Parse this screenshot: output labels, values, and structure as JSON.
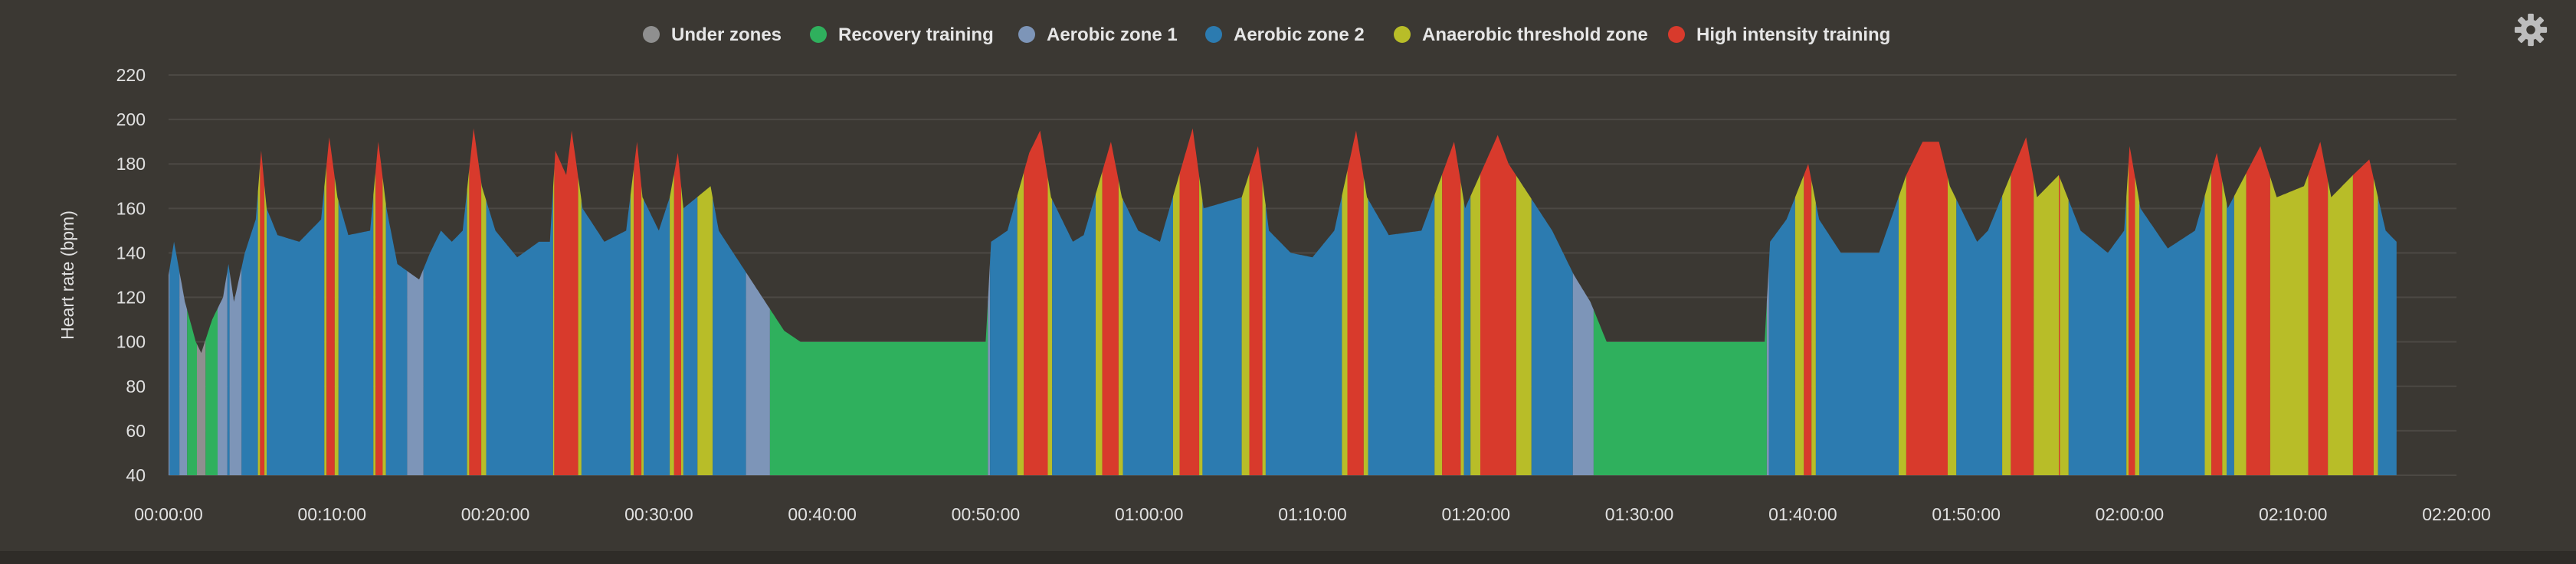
{
  "settings_icon": "gear-icon",
  "chart_data": {
    "type": "area",
    "title": "",
    "xlabel": "",
    "ylabel": "Heart rate (bpm)",
    "ylim": [
      40,
      220
    ],
    "yticks": [
      40,
      60,
      80,
      100,
      120,
      140,
      160,
      180,
      200,
      220
    ],
    "xlim": [
      "00:00:00",
      "02:20:00"
    ],
    "xticks": [
      "00:00:00",
      "00:10:00",
      "00:20:00",
      "00:30:00",
      "00:40:00",
      "00:50:00",
      "01:00:00",
      "01:10:00",
      "01:20:00",
      "01:30:00",
      "01:40:00",
      "01:50:00",
      "02:00:00",
      "02:10:00",
      "02:20:00"
    ],
    "grid": true,
    "legend_position": "top",
    "series": [
      {
        "name": "Under zones",
        "color": "#8f8f8f",
        "zone": [
          0,
          100
        ]
      },
      {
        "name": "Recovery training",
        "color": "#2fb05d",
        "zone": [
          100,
          115
        ]
      },
      {
        "name": "Aerobic zone 1",
        "color": "#7d95b8",
        "zone": [
          115,
          132
        ]
      },
      {
        "name": "Aerobic zone 2",
        "color": "#2c7bb0",
        "zone": [
          132,
          165
        ]
      },
      {
        "name": "Anaerobic threshold zone",
        "color": "#b8bd28",
        "zone": [
          165,
          175
        ]
      },
      {
        "name": "High intensity training",
        "color": "#d83a2c",
        "zone": [
          175,
          240
        ]
      }
    ],
    "points": [
      [
        "00:00:00",
        130
      ],
      [
        "00:00:20",
        145
      ],
      [
        "00:01:00",
        118
      ],
      [
        "00:01:40",
        100
      ],
      [
        "00:02:00",
        95
      ],
      [
        "00:02:40",
        110
      ],
      [
        "00:03:20",
        120
      ],
      [
        "00:03:40",
        135
      ],
      [
        "00:04:00",
        118
      ],
      [
        "00:04:40",
        140
      ],
      [
        "00:05:20",
        155
      ],
      [
        "00:05:40",
        186
      ],
      [
        "00:06:00",
        160
      ],
      [
        "00:06:40",
        148
      ],
      [
        "00:08:00",
        145
      ],
      [
        "00:09:20",
        155
      ],
      [
        "00:09:50",
        192
      ],
      [
        "00:10:20",
        165
      ],
      [
        "00:11:00",
        148
      ],
      [
        "00:12:20",
        150
      ],
      [
        "00:12:50",
        190
      ],
      [
        "00:13:20",
        160
      ],
      [
        "00:14:00",
        135
      ],
      [
        "00:15:20",
        128
      ],
      [
        "00:16:00",
        140
      ],
      [
        "00:16:40",
        150
      ],
      [
        "00:17:20",
        145
      ],
      [
        "00:18:00",
        150
      ],
      [
        "00:18:40",
        196
      ],
      [
        "00:19:10",
        170
      ],
      [
        "00:20:00",
        150
      ],
      [
        "00:21:20",
        138
      ],
      [
        "00:22:40",
        145
      ],
      [
        "00:23:20",
        145
      ],
      [
        "00:23:40",
        186
      ],
      [
        "00:24:20",
        175
      ],
      [
        "00:24:40",
        195
      ],
      [
        "00:25:20",
        160
      ],
      [
        "00:26:40",
        145
      ],
      [
        "00:28:00",
        150
      ],
      [
        "00:28:40",
        190
      ],
      [
        "00:29:00",
        165
      ],
      [
        "00:30:00",
        150
      ],
      [
        "00:30:40",
        165
      ],
      [
        "00:31:10",
        185
      ],
      [
        "00:31:30",
        160
      ],
      [
        "00:33:10",
        170
      ],
      [
        "00:33:40",
        150
      ],
      [
        "00:35:00",
        135
      ],
      [
        "00:36:20",
        120
      ],
      [
        "00:37:40",
        105
      ],
      [
        "00:38:40",
        100
      ],
      [
        "00:50:00",
        100
      ],
      [
        "00:50:20",
        145
      ],
      [
        "00:51:20",
        150
      ],
      [
        "00:52:40",
        185
      ],
      [
        "00:53:20",
        195
      ],
      [
        "00:54:00",
        165
      ],
      [
        "00:55:20",
        145
      ],
      [
        "00:56:00",
        148
      ],
      [
        "00:57:40",
        190
      ],
      [
        "00:58:20",
        165
      ],
      [
        "00:59:20",
        150
      ],
      [
        "01:00:40",
        145
      ],
      [
        "01:02:40",
        196
      ],
      [
        "01:03:20",
        160
      ],
      [
        "01:05:40",
        165
      ],
      [
        "01:06:40",
        188
      ],
      [
        "01:07:20",
        150
      ],
      [
        "01:08:40",
        140
      ],
      [
        "01:10:00",
        138
      ],
      [
        "01:11:20",
        150
      ],
      [
        "01:12:40",
        195
      ],
      [
        "01:13:20",
        165
      ],
      [
        "01:14:40",
        148
      ],
      [
        "01:16:40",
        150
      ],
      [
        "01:18:40",
        190
      ],
      [
        "01:19:20",
        160
      ],
      [
        "01:21:20",
        193
      ],
      [
        "01:22:00",
        180
      ],
      [
        "01:23:20",
        165
      ],
      [
        "01:24:40",
        150
      ],
      [
        "01:26:00",
        130
      ],
      [
        "01:27:00",
        118
      ],
      [
        "01:28:00",
        100
      ],
      [
        "01:37:40",
        100
      ],
      [
        "01:38:00",
        145
      ],
      [
        "01:39:00",
        155
      ],
      [
        "01:40:20",
        180
      ],
      [
        "01:41:00",
        155
      ],
      [
        "01:42:20",
        140
      ],
      [
        "01:44:40",
        140
      ],
      [
        "01:46:20",
        175
      ],
      [
        "01:47:20",
        190
      ],
      [
        "01:48:20",
        190
      ],
      [
        "01:49:00",
        170
      ],
      [
        "01:50:40",
        145
      ],
      [
        "01:51:20",
        150
      ],
      [
        "01:53:40",
        192
      ],
      [
        "01:54:20",
        165
      ],
      [
        "01:55:40",
        175
      ],
      [
        "01:57:00",
        150
      ],
      [
        "01:58:40",
        140
      ],
      [
        "01:59:40",
        150
      ],
      [
        "02:00:00",
        188
      ],
      [
        "02:00:40",
        160
      ],
      [
        "02:02:20",
        142
      ],
      [
        "02:04:00",
        150
      ],
      [
        "02:05:20",
        185
      ],
      [
        "02:06:00",
        160
      ],
      [
        "02:08:00",
        188
      ],
      [
        "02:09:00",
        165
      ],
      [
        "02:10:40",
        170
      ],
      [
        "02:11:40",
        190
      ],
      [
        "02:12:20",
        165
      ],
      [
        "02:13:40",
        175
      ],
      [
        "02:14:40",
        182
      ],
      [
        "02:15:40",
        150
      ],
      [
        "02:16:20",
        145
      ]
    ]
  }
}
